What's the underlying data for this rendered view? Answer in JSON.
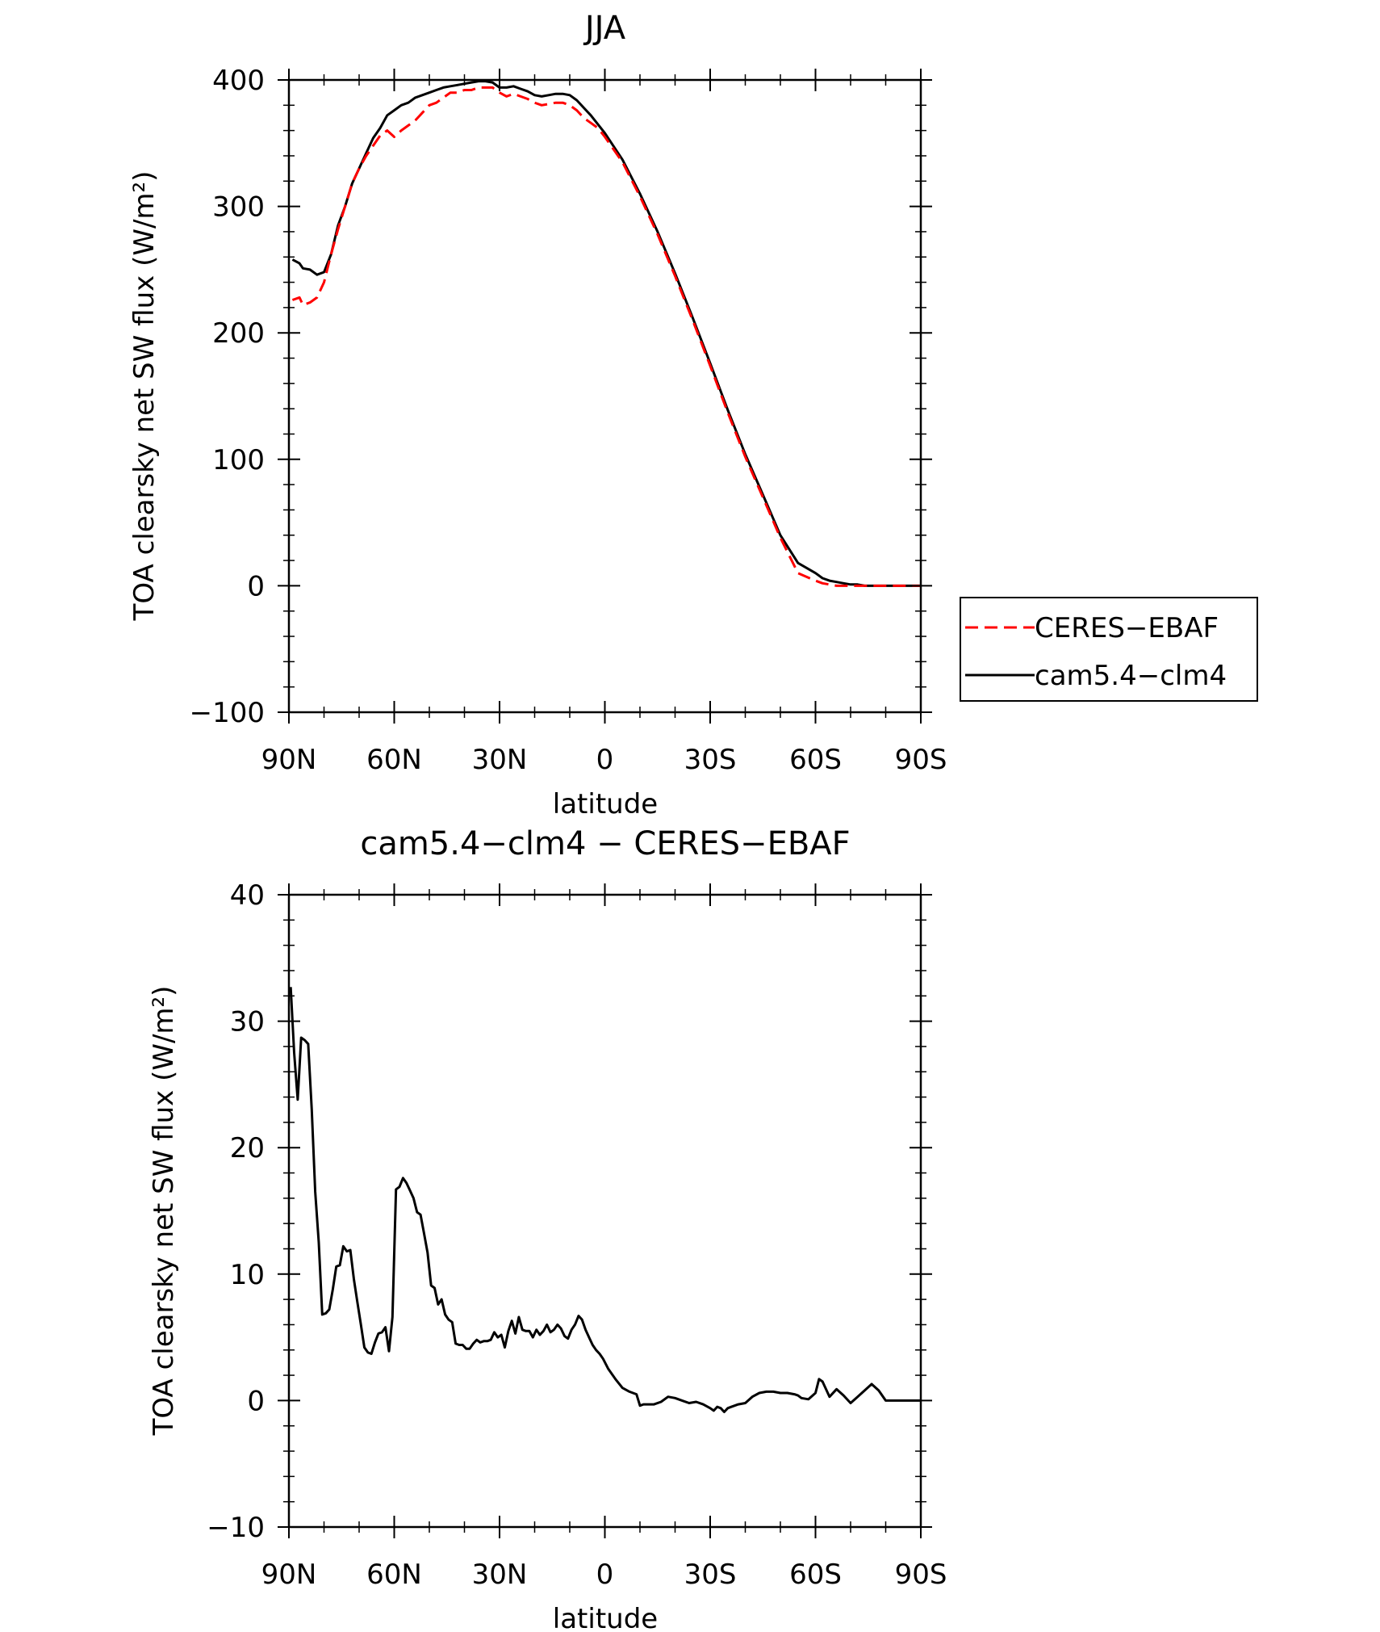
{
  "chart_data": [
    {
      "type": "line",
      "title": "JJA",
      "xlabel": "latitude",
      "ylabel": "TOA clearsky net SW flux (W/m²)",
      "xlim": [
        90,
        -90
      ],
      "ylim": [
        -100,
        400
      ],
      "xticks": [
        90,
        60,
        30,
        0,
        -30,
        -60,
        -90
      ],
      "xtick_labels": [
        "90N",
        "60N",
        "30N",
        "0",
        "30S",
        "60S",
        "90S"
      ],
      "yticks": [
        -100,
        0,
        100,
        200,
        300,
        400
      ],
      "ytick_labels": [
        "−100",
        "0",
        "100",
        "200",
        "300",
        "400"
      ],
      "legend": {
        "placement": "right",
        "entries": [
          "CERES−EBAF",
          "cam5.4−clm4"
        ]
      },
      "series": [
        {
          "name": "CERES−EBAF",
          "color": "#ff0000",
          "dash": "dashed",
          "x": [
            89,
            87,
            86,
            84,
            82,
            80,
            78,
            76,
            74,
            72,
            70,
            68,
            66,
            64,
            62,
            60,
            58,
            56,
            54,
            52,
            50,
            48,
            46,
            44,
            42,
            40,
            38,
            36,
            34,
            32,
            30,
            28,
            26,
            24,
            22,
            20,
            18,
            16,
            14,
            12,
            10,
            8,
            6,
            4,
            2,
            0,
            -5,
            -10,
            -15,
            -20,
            -25,
            -30,
            -35,
            -40,
            -45,
            -50,
            -55,
            -60,
            -62,
            -64,
            -66,
            -68,
            -70,
            -72,
            -74,
            -76,
            -78,
            -80,
            -85,
            -90
          ],
          "y": [
            226,
            228,
            222,
            224,
            228,
            240,
            262,
            282,
            300,
            318,
            330,
            340,
            348,
            356,
            360,
            355,
            360,
            364,
            368,
            374,
            380,
            382,
            386,
            390,
            390,
            392,
            392,
            394,
            394,
            394,
            390,
            387,
            389,
            387,
            385,
            382,
            380,
            381,
            382,
            382,
            380,
            376,
            370,
            366,
            362,
            355,
            335,
            308,
            278,
            245,
            210,
            174,
            137,
            102,
            70,
            38,
            10,
            4,
            2,
            1,
            0,
            0,
            0,
            0,
            0,
            0,
            0,
            0,
            0,
            0
          ]
        },
        {
          "name": "cam5.4−clm4",
          "color": "#000000",
          "dash": "solid",
          "x": [
            89,
            87,
            86,
            84,
            82,
            80,
            78,
            76,
            74,
            72,
            70,
            68,
            66,
            64,
            62,
            60,
            58,
            56,
            54,
            52,
            50,
            48,
            46,
            44,
            42,
            40,
            38,
            36,
            34,
            32,
            30,
            28,
            26,
            24,
            22,
            20,
            18,
            16,
            14,
            12,
            10,
            8,
            6,
            4,
            2,
            0,
            -5,
            -10,
            -15,
            -20,
            -25,
            -30,
            -35,
            -40,
            -45,
            -50,
            -55,
            -60,
            -62,
            -64,
            -66,
            -68,
            -70,
            -72,
            -74,
            -76,
            -78,
            -80,
            -85,
            -90
          ],
          "y": [
            258,
            255,
            251,
            250,
            246,
            248,
            262,
            285,
            300,
            318,
            330,
            342,
            354,
            362,
            372,
            376,
            380,
            382,
            386,
            388,
            390,
            392,
            394,
            395,
            396,
            397,
            398,
            399,
            399,
            398,
            394,
            394,
            395,
            393,
            391,
            388,
            387,
            388,
            389,
            389,
            388,
            384,
            378,
            372,
            365,
            358,
            337,
            310,
            280,
            247,
            212,
            176,
            139,
            104,
            72,
            40,
            18,
            10,
            6,
            4,
            3,
            2,
            1,
            1,
            0,
            0,
            0,
            0,
            0,
            0
          ]
        }
      ]
    },
    {
      "type": "line",
      "title": "cam5.4−clm4 − CERES−EBAF",
      "xlabel": "latitude",
      "ylabel": "TOA clearsky net SW flux (W/m²)",
      "xlim": [
        90,
        -90
      ],
      "ylim": [
        -10,
        40
      ],
      "xticks": [
        90,
        60,
        30,
        0,
        -30,
        -60,
        -90
      ],
      "xtick_labels": [
        "90N",
        "60N",
        "30N",
        "0",
        "30S",
        "60S",
        "90S"
      ],
      "yticks": [
        -10,
        0,
        10,
        20,
        30,
        40
      ],
      "ytick_labels": [
        "−10",
        "0",
        "10",
        "20",
        "30",
        "40"
      ],
      "series": [
        {
          "color": "#000000",
          "dash": "solid",
          "x": [
            89.5,
            88.5,
            87.5,
            86.5,
            85.5,
            84.5,
            83.5,
            82.5,
            81.5,
            80.5,
            79.5,
            78.5,
            77.5,
            76.5,
            75.5,
            74.5,
            73.5,
            72.5,
            71.5,
            70.5,
            69.5,
            68.5,
            67.5,
            66.5,
            65.5,
            64.5,
            63.5,
            62.5,
            61.5,
            60.5,
            59.5,
            58.5,
            57.5,
            56.5,
            55.5,
            54.5,
            53.5,
            52.5,
            51.5,
            50.5,
            49.5,
            48.5,
            47.5,
            46.5,
            45.5,
            44.5,
            43.5,
            42.5,
            41.5,
            40.5,
            39.5,
            38.5,
            37.5,
            36.5,
            35.5,
            34.5,
            33.5,
            32.5,
            31.5,
            30.5,
            29.5,
            28.5,
            27.5,
            26.5,
            25.5,
            24.5,
            23.5,
            22.5,
            21.5,
            20.5,
            19.5,
            18.5,
            17.5,
            16.5,
            15.5,
            14.5,
            13.5,
            12.5,
            11.5,
            10.5,
            9.5,
            8.5,
            7.5,
            6.5,
            5.5,
            4.5,
            3.5,
            2.5,
            1.5,
            0.5,
            -1,
            -3,
            -5,
            -7,
            -9,
            -10,
            -11,
            -12,
            -14,
            -16,
            -18,
            -20,
            -22,
            -24,
            -26,
            -28,
            -30,
            -31,
            -32,
            -33,
            -34,
            -35,
            -36,
            -38,
            -40,
            -42,
            -44,
            -46,
            -48,
            -50,
            -52,
            -54,
            -55,
            -56,
            -58,
            -60,
            -61,
            -62,
            -64,
            -66,
            -68,
            -70,
            -72,
            -74,
            -76,
            -78,
            -80,
            -82,
            -84,
            -86,
            -88,
            -90
          ],
          "y": [
            32.7,
            27.5,
            23.8,
            28.7,
            28.5,
            28.2,
            23.0,
            16.5,
            12.5,
            6.8,
            6.9,
            7.2,
            8.8,
            10.6,
            10.7,
            12.2,
            11.8,
            11.9,
            9.6,
            7.8,
            6.0,
            4.2,
            3.8,
            3.7,
            4.6,
            5.3,
            5.4,
            5.8,
            3.9,
            6.6,
            16.7,
            16.9,
            17.6,
            17.2,
            16.6,
            16.0,
            14.9,
            14.7,
            13.2,
            11.7,
            9.1,
            8.9,
            7.6,
            8.0,
            6.8,
            6.4,
            6.2,
            4.5,
            4.4,
            4.4,
            4.1,
            4.1,
            4.5,
            4.8,
            4.6,
            4.7,
            4.7,
            4.8,
            5.4,
            5.0,
            5.2,
            4.2,
            5.5,
            6.3,
            5.3,
            6.6,
            5.6,
            5.5,
            5.5,
            5.0,
            5.6,
            5.2,
            5.5,
            6.0,
            5.4,
            5.6,
            6.0,
            5.7,
            5.1,
            4.9,
            5.6,
            6.0,
            6.7,
            6.4,
            5.6,
            5.0,
            4.4,
            4.0,
            3.7,
            3.3,
            2.5,
            1.7,
            1.0,
            0.7,
            0.5,
            -0.4,
            -0.3,
            -0.3,
            -0.3,
            -0.1,
            0.3,
            0.2,
            0.0,
            -0.2,
            -0.1,
            -0.3,
            -0.6,
            -0.8,
            -0.5,
            -0.6,
            -0.9,
            -0.6,
            -0.5,
            -0.3,
            -0.2,
            0.3,
            0.6,
            0.7,
            0.7,
            0.6,
            0.6,
            0.5,
            0.4,
            0.2,
            0.1,
            0.6,
            1.7,
            1.5,
            0.3,
            0.9,
            0.4,
            -0.2,
            0.3,
            0.8,
            1.3,
            0.8,
            0.0,
            0.0,
            0.0,
            0.0,
            0.0,
            0.0
          ]
        }
      ]
    }
  ]
}
